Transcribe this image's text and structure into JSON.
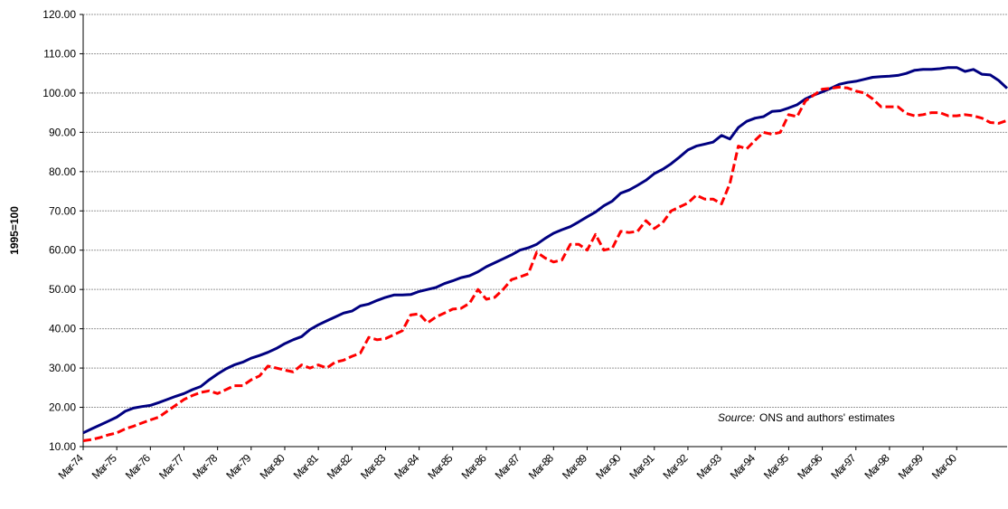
{
  "chart_data": {
    "type": "line",
    "y_label": "1995=100",
    "annotation_prefix": "Source:",
    "annotation": "ONS and authors' estimates",
    "categories": [
      "Mar-74",
      null,
      null,
      null,
      "Mar-75",
      null,
      null,
      null,
      "Mar-76",
      null,
      null,
      null,
      "Mar-77",
      null,
      null,
      null,
      "Mar-78",
      null,
      null,
      null,
      "Mar-79",
      null,
      null,
      null,
      "Mar-80",
      null,
      null,
      null,
      "Mar-81",
      null,
      null,
      null,
      "Mar-82",
      null,
      null,
      null,
      "Mar-83",
      null,
      null,
      null,
      "Mar-84",
      null,
      null,
      null,
      "Mar-85",
      null,
      null,
      null,
      "Mar-86",
      null,
      null,
      null,
      "Mar-87",
      null,
      null,
      null,
      "Mar-88",
      null,
      null,
      null,
      "Mar-89",
      null,
      null,
      null,
      "Mar-90",
      null,
      null,
      null,
      "Mar-91",
      null,
      null,
      null,
      "Mar-92",
      null,
      null,
      null,
      "Mar-93",
      null,
      null,
      null,
      "Mar-94",
      null,
      null,
      null,
      "Mar-95",
      null,
      null,
      null,
      "Mar-96",
      null,
      null,
      null,
      "Mar-97",
      null,
      null,
      null,
      "Mar-98",
      null,
      null,
      null,
      "Mar-99",
      null,
      null,
      null,
      "Mar-00",
      null,
      null,
      null,
      null,
      null,
      null
    ],
    "series": [
      {
        "color": "#000080",
        "dashed": false,
        "values": [
          13.5,
          14.5,
          15.5,
          16.5,
          17.5,
          19,
          19.8,
          20.2,
          20.5,
          21.2,
          22,
          22.8,
          23.5,
          24.5,
          25.3,
          27,
          28.5,
          29.8,
          30.8,
          31.5,
          32.5,
          33.2,
          34,
          35,
          36.2,
          37.2,
          38,
          39.8,
          41,
          42,
          43,
          44,
          44.5,
          45.8,
          46.3,
          47.2,
          48,
          48.6,
          48.6,
          48.7,
          49.5,
          50,
          50.5,
          51.5,
          52.2,
          53,
          53.5,
          54.5,
          55.8,
          56.8,
          57.8,
          58.8,
          60,
          60.6,
          61.5,
          63,
          64.3,
          65.2,
          66,
          67.2,
          68.5,
          69.7,
          71.3,
          72.5,
          74.5,
          75.3,
          76.5,
          77.8,
          79.5,
          80.6,
          82,
          83.7,
          85.5,
          86.5,
          87,
          87.5,
          89.2,
          88.3,
          91.2,
          92.8,
          93.6,
          94,
          95.3,
          95.5,
          96.2,
          97,
          98.5,
          99.5,
          100.3,
          101.2,
          102.2,
          102.7,
          103,
          103.5,
          104,
          104.2,
          104.3,
          104.5,
          105,
          105.8,
          106,
          106,
          106.2,
          106.5,
          106.5,
          105.5,
          106,
          104.8,
          104.6,
          103.2,
          101.2
        ]
      },
      {
        "color": "#ff0000",
        "dashed": true,
        "values": [
          11.5,
          11.8,
          12.3,
          13,
          13.5,
          14.5,
          15.2,
          16,
          16.8,
          17.5,
          19,
          20.5,
          22,
          23,
          23.8,
          24.2,
          23.5,
          24.5,
          25.5,
          25.5,
          27,
          28,
          30.5,
          30,
          29.5,
          29,
          30.8,
          30,
          30.8,
          30,
          31.5,
          32,
          33,
          33.8,
          37.8,
          37.2,
          37.5,
          38.5,
          39.5,
          43.5,
          43.8,
          41.5,
          43,
          44,
          45,
          45.2,
          46.5,
          50,
          47.5,
          48,
          50,
          52.5,
          53.2,
          54,
          59.5,
          58,
          57,
          57.5,
          61.5,
          61.5,
          60,
          64,
          60,
          60.5,
          64.8,
          64.5,
          64.8,
          67.5,
          65.5,
          67,
          70,
          71,
          72,
          74,
          73,
          73,
          71.8,
          77,
          86.5,
          85.8,
          88,
          90,
          89.5,
          90,
          94.5,
          94,
          98,
          99.5,
          101,
          101.2,
          101.5,
          101.3,
          100.5,
          100,
          98.5,
          96.5,
          96.5,
          96.5,
          94.8,
          94.2,
          94.5,
          95,
          95,
          94.2,
          94.2,
          94.5,
          94.2,
          93.6,
          92.5,
          92.3,
          93
        ]
      }
    ],
    "ylim": [
      10,
      120
    ],
    "yticks": [
      {
        "value": 10,
        "label": "10.00"
      },
      {
        "value": 20,
        "label": "20.00"
      },
      {
        "value": 30,
        "label": "30.00"
      },
      {
        "value": 40,
        "label": "40.00"
      },
      {
        "value": 50,
        "label": "50.00"
      },
      {
        "value": 60,
        "label": "60.00"
      },
      {
        "value": 70,
        "label": "70.00"
      },
      {
        "value": 80,
        "label": "80.00"
      },
      {
        "value": 90,
        "label": "90.00"
      },
      {
        "value": 100,
        "label": "100.00"
      },
      {
        "value": 110,
        "label": "110.00"
      },
      {
        "value": 120,
        "label": "120.00"
      }
    ],
    "grid": true
  }
}
